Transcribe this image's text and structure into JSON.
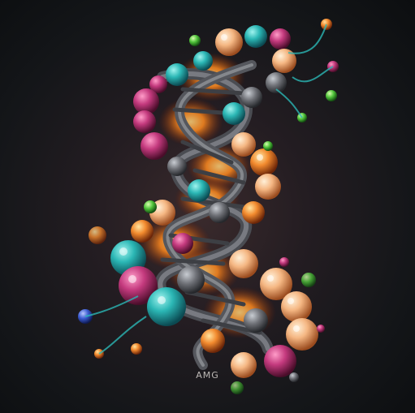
{
  "artwork": {
    "subject": "dna-helix-illustration",
    "signature": "AMG",
    "colors": {
      "background": "#141619",
      "teal": "#2bb7b5",
      "magenta": "#c43a7e",
      "orange": "#f28a2e",
      "peach": "#f5b783",
      "gray_strand": "#6e7076",
      "glow_gold": "#ffb347"
    }
  }
}
